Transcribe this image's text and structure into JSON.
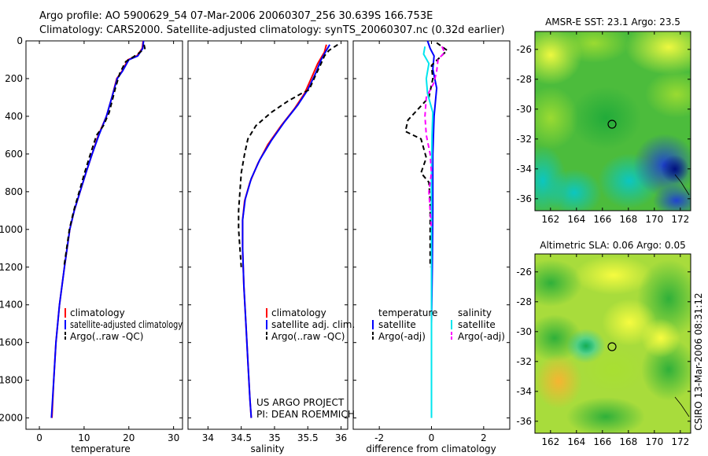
{
  "header": {
    "line1": "Argo profile: AO 5900629_54 07-Mar-2006 20060307_256 30.639S 166.753E",
    "line2": "Climatology: CARS2000. Satellite-adjusted climatology: synTS_20060307.nc (0.32d earlier)"
  },
  "side_label": "CSIRO 13-Mar-2006 08:31:12",
  "colors": {
    "clim": "#ff0000",
    "sat": "#0000ff",
    "argo": "#000000",
    "sal_sat": "#00e5ee",
    "sal_argo": "#ff00ff"
  },
  "chart_data": [
    {
      "id": "temperature",
      "type": "line",
      "xlabel": "temperature",
      "xlim": [
        -3,
        32
      ],
      "ylim": [
        0,
        2060
      ],
      "xticks": [
        0,
        10,
        20,
        30
      ],
      "yticks": [
        0,
        200,
        400,
        600,
        800,
        1000,
        1200,
        1400,
        1600,
        1800,
        2000
      ],
      "y_reversed": true,
      "series": [
        {
          "name": "climatology",
          "color": "#ff0000",
          "dash": "",
          "points": [
            [
              23.2,
              0
            ],
            [
              23.0,
              40
            ],
            [
              21.8,
              80
            ],
            [
              19.8,
              100
            ],
            [
              18.5,
              160
            ],
            [
              17.3,
              200
            ],
            [
              16.2,
              300
            ],
            [
              15.0,
              400
            ],
            [
              13.2,
              500
            ],
            [
              11.8,
              600
            ],
            [
              10.4,
              700
            ],
            [
              9.1,
              800
            ],
            [
              7.8,
              900
            ],
            [
              6.8,
              1000
            ],
            [
              5.6,
              1200
            ],
            [
              4.5,
              1400
            ],
            [
              3.7,
              1600
            ],
            [
              3.2,
              1800
            ],
            [
              2.8,
              2000
            ]
          ]
        },
        {
          "name": "satellite-adjusted climatology",
          "color": "#0000ff",
          "dash": "",
          "points": [
            [
              23.3,
              0
            ],
            [
              23.1,
              40
            ],
            [
              22.0,
              80
            ],
            [
              20.0,
              100
            ],
            [
              18.6,
              160
            ],
            [
              17.4,
              200
            ],
            [
              16.2,
              300
            ],
            [
              15.0,
              400
            ],
            [
              13.3,
              500
            ],
            [
              11.8,
              600
            ],
            [
              10.4,
              700
            ],
            [
              9.1,
              800
            ],
            [
              7.8,
              900
            ],
            [
              6.8,
              1000
            ],
            [
              5.6,
              1200
            ],
            [
              4.5,
              1400
            ],
            [
              3.7,
              1600
            ],
            [
              3.2,
              1800
            ],
            [
              2.7,
              2000
            ]
          ]
        },
        {
          "name": "Argo(..raw -QC)",
          "color": "#000000",
          "dash": "6,4",
          "points": [
            [
              23.4,
              20
            ],
            [
              23.6,
              40
            ],
            [
              22.5,
              60
            ],
            [
              21.0,
              85
            ],
            [
              19.3,
              110
            ],
            [
              18.0,
              170
            ],
            [
              17.0,
              250
            ],
            [
              15.6,
              380
            ],
            [
              14.3,
              450
            ],
            [
              12.8,
              500
            ],
            [
              11.4,
              600
            ],
            [
              10.1,
              700
            ],
            [
              8.9,
              800
            ],
            [
              7.7,
              900
            ],
            [
              6.7,
              1000
            ],
            [
              5.5,
              1200
            ]
          ]
        }
      ],
      "legend": [
        "climatology",
        "satellite-adjusted climatology",
        "Argo(..raw -QC)"
      ]
    },
    {
      "id": "salinity",
      "type": "line",
      "xlabel": "salinity",
      "xlim": [
        33.7,
        36.1
      ],
      "ylim": [
        0,
        2060
      ],
      "xticks": [
        34,
        34.5,
        35,
        35.5,
        36
      ],
      "y_reversed": true,
      "series": [
        {
          "name": "climatology",
          "color": "#ff0000",
          "dash": "",
          "points": [
            [
              35.78,
              20
            ],
            [
              35.75,
              60
            ],
            [
              35.65,
              120
            ],
            [
              35.55,
              200
            ],
            [
              35.45,
              280
            ],
            [
              35.3,
              360
            ],
            [
              35.1,
              450
            ],
            [
              34.9,
              550
            ],
            [
              34.75,
              650
            ],
            [
              34.63,
              750
            ],
            [
              34.55,
              850
            ],
            [
              34.52,
              950
            ],
            [
              34.52,
              1100
            ],
            [
              34.54,
              1300
            ],
            [
              34.57,
              1500
            ],
            [
              34.6,
              1700
            ],
            [
              34.63,
              1900
            ],
            [
              34.65,
              2000
            ]
          ]
        },
        {
          "name": "satellite adj. clim.",
          "color": "#0000ff",
          "dash": "",
          "points": [
            [
              35.83,
              20
            ],
            [
              35.78,
              50
            ],
            [
              35.7,
              100
            ],
            [
              35.62,
              170
            ],
            [
              35.5,
              260
            ],
            [
              35.35,
              340
            ],
            [
              35.15,
              430
            ],
            [
              34.95,
              530
            ],
            [
              34.78,
              630
            ],
            [
              34.65,
              730
            ],
            [
              34.56,
              840
            ],
            [
              34.52,
              950
            ],
            [
              34.52,
              1100
            ],
            [
              34.54,
              1300
            ],
            [
              34.57,
              1500
            ],
            [
              34.6,
              1700
            ],
            [
              34.63,
              1900
            ],
            [
              34.65,
              2000
            ]
          ]
        },
        {
          "name": "Argo(..raw -QC)",
          "color": "#000000",
          "dash": "6,4",
          "points": [
            [
              35.95,
              20
            ],
            [
              35.82,
              50
            ],
            [
              35.75,
              80
            ],
            [
              35.7,
              120
            ],
            [
              35.62,
              180
            ],
            [
              35.52,
              260
            ],
            [
              35.4,
              280
            ],
            [
              35.2,
              320
            ],
            [
              34.95,
              380
            ],
            [
              34.72,
              450
            ],
            [
              34.6,
              520
            ],
            [
              34.55,
              600
            ],
            [
              34.5,
              700
            ],
            [
              34.48,
              800
            ],
            [
              34.46,
              900
            ],
            [
              34.46,
              1000
            ],
            [
              34.48,
              1100
            ],
            [
              34.5,
              1200
            ]
          ]
        }
      ],
      "legend": [
        "climatology",
        "satellite adj. clim.",
        "Argo(..raw -QC)"
      ],
      "annotation": [
        "US ARGO PROJECT",
        "PI: DEAN ROEMMICH"
      ]
    },
    {
      "id": "difference",
      "type": "line",
      "xlabel": "difference from climatology",
      "xlim": [
        -3,
        3
      ],
      "ylim": [
        0,
        2060
      ],
      "xticks": [
        -2,
        0,
        2
      ],
      "y_reversed": true,
      "series": [
        {
          "name": "temperature satellite",
          "color": "#0000ff",
          "dash": "",
          "points": [
            [
              -0.15,
              0
            ],
            [
              -0.05,
              40
            ],
            [
              0.1,
              80
            ],
            [
              0.05,
              150
            ],
            [
              0.2,
              250
            ],
            [
              0.1,
              400
            ],
            [
              0.05,
              600
            ],
            [
              0.05,
              900
            ],
            [
              0.03,
              1200
            ],
            [
              0.0,
              1500
            ]
          ]
        },
        {
          "name": "temperature Argo(-adj)",
          "color": "#000000",
          "dash": "6,4",
          "points": [
            [
              0.2,
              10
            ],
            [
              0.6,
              50
            ],
            [
              0.3,
              90
            ],
            [
              0.0,
              130
            ],
            [
              0.05,
              200
            ],
            [
              -0.1,
              300
            ],
            [
              -0.5,
              360
            ],
            [
              -0.9,
              420
            ],
            [
              -1.0,
              480
            ],
            [
              -0.4,
              520
            ],
            [
              -0.2,
              620
            ],
            [
              -0.4,
              700
            ],
            [
              -0.1,
              750
            ],
            [
              -0.05,
              850
            ],
            [
              -0.05,
              1000
            ],
            [
              -0.05,
              1200
            ]
          ]
        },
        {
          "name": "salinity satellite",
          "color": "#00e5ee",
          "dash": "",
          "points": [
            [
              -0.25,
              30
            ],
            [
              -0.3,
              70
            ],
            [
              -0.1,
              120
            ],
            [
              -0.2,
              200
            ],
            [
              -0.15,
              280
            ],
            [
              0.05,
              380
            ],
            [
              0.02,
              500
            ],
            [
              0.0,
              700
            ],
            [
              0.0,
              1000
            ],
            [
              0.0,
              1500
            ],
            [
              0.0,
              2000
            ]
          ]
        },
        {
          "name": "salinity Argo(-adj)",
          "color": "#ff00ff",
          "dash": "6,4",
          "points": [
            [
              0.4,
              30
            ],
            [
              0.5,
              60
            ],
            [
              0.25,
              100
            ],
            [
              0.2,
              160
            ],
            [
              0.1,
              220
            ],
            [
              -0.2,
              300
            ],
            [
              -0.25,
              400
            ],
            [
              -0.2,
              500
            ],
            [
              -0.05,
              600
            ],
            [
              0.0,
              700
            ],
            [
              -0.1,
              800
            ],
            [
              -0.05,
              900
            ],
            [
              0.0,
              1000
            ]
          ]
        }
      ],
      "legend_groups": [
        {
          "title": "temperature",
          "items": [
            "satellite",
            "Argo(-adj)"
          ]
        },
        {
          "title": "salinity",
          "items": [
            "satellite",
            "Argo(-adj)"
          ]
        }
      ]
    },
    {
      "id": "sst-map",
      "type": "heatmap",
      "title": "AMSR-E SST: 23.1 Argo: 23.5",
      "xlim": [
        160.8,
        172.8
      ],
      "ylim": [
        -36.8,
        -24.8
      ],
      "xticks": [
        162,
        164,
        166,
        168,
        170,
        172
      ],
      "yticks": [
        -26,
        -28,
        -30,
        -32,
        -34,
        -36
      ],
      "marker": {
        "lon": 166.75,
        "lat": -30.64
      }
    },
    {
      "id": "sla-map",
      "type": "heatmap",
      "title": "Altimetric SLA: 0.06 Argo: 0.05",
      "xlim": [
        160.8,
        172.8
      ],
      "ylim": [
        -36.8,
        -24.8
      ],
      "xticks": [
        162,
        164,
        166,
        168,
        170,
        172
      ],
      "yticks": [
        -26,
        -28,
        -30,
        -32,
        -34,
        -36
      ],
      "marker": {
        "lon": 166.75,
        "lat": -30.64
      }
    }
  ]
}
